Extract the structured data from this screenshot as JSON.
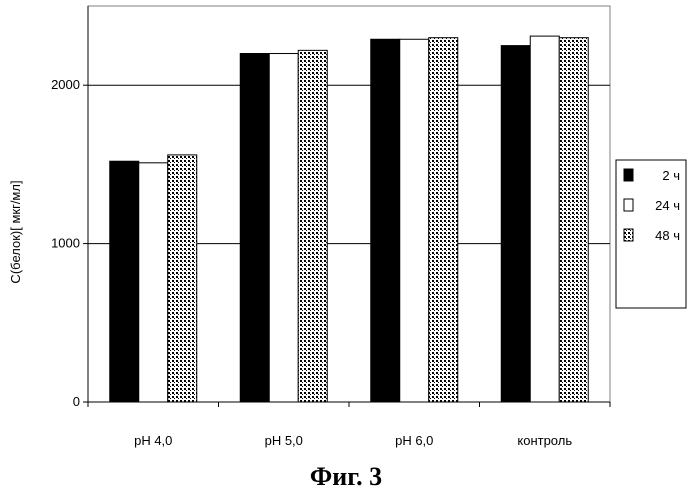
{
  "figure_caption": "Фиг. 3",
  "chart_data": {
    "type": "bar",
    "categories": [
      "pH 4,0",
      "pH 5,0",
      "pH 6,0",
      "контроль"
    ],
    "series": [
      {
        "name": "2 ч",
        "values": [
          1520,
          2200,
          2290,
          2250
        ],
        "color": "#000000",
        "fill": "solid-black"
      },
      {
        "name": "24 ч",
        "values": [
          1510,
          2200,
          2290,
          2310
        ],
        "color": "#ffffff",
        "fill": "white"
      },
      {
        "name": "48 ч",
        "values": [
          1560,
          2220,
          2300,
          2300
        ],
        "color": "#cccccc",
        "fill": "dotted"
      }
    ],
    "title": "",
    "xlabel": "",
    "ylabel": "С(белок)[ мкг/мл]",
    "ylim": [
      0,
      2500
    ],
    "yticks": [
      0,
      1000,
      2000
    ],
    "grid": true,
    "legend_position": "right"
  }
}
